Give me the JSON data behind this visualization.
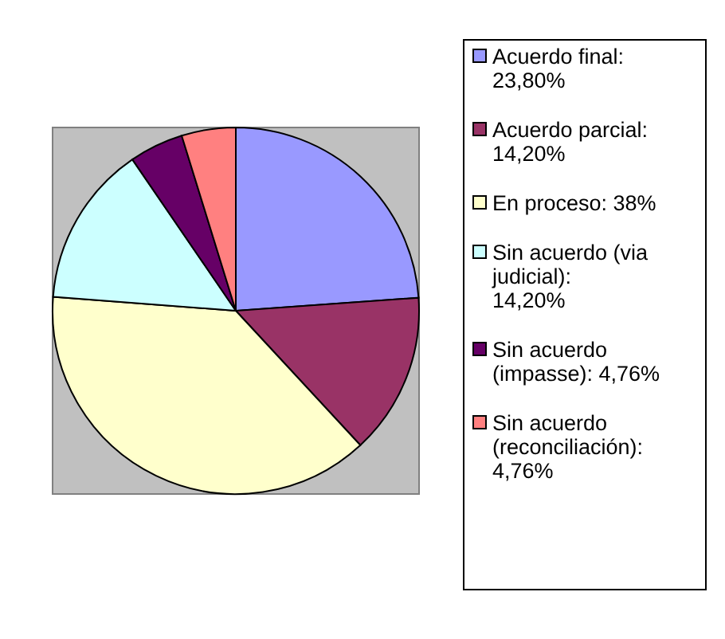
{
  "chart_data": {
    "type": "pie",
    "categories": [
      "Acuerdo final: 23,80%",
      "Acuerdo parcial: 14,20%",
      "En proceso: 38%",
      "Sin acuerdo (via judicial): 14,20%",
      "Sin acuerdo (impasse): 4,76%",
      "Sin acuerdo (reconciliación): 4,76%"
    ],
    "values": [
      23.8,
      14.2,
      38,
      14.2,
      4.76,
      4.76
    ],
    "colors": [
      "#9999ff",
      "#993366",
      "#ffffcc",
      "#ccffff",
      "#660066",
      "#ff8080"
    ],
    "legend": "right"
  }
}
